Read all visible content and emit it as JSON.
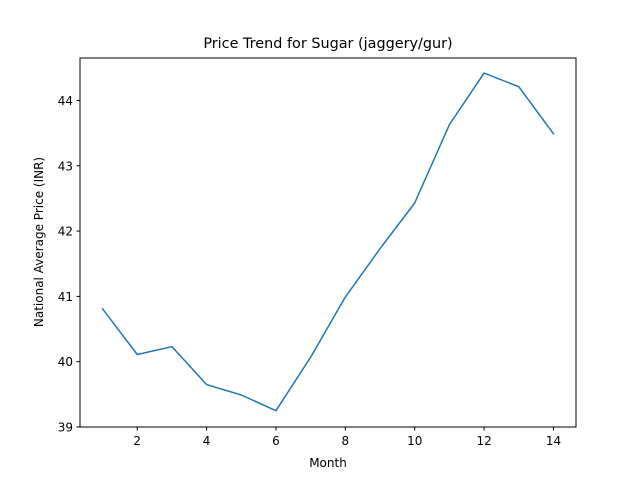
{
  "chart_data": {
    "type": "line",
    "title": "Price Trend for Sugar (jaggery/gur)",
    "xlabel": "Month",
    "ylabel": "National Average Price (INR)",
    "xlim": [
      0.35,
      14.65
    ],
    "ylim": [
      39.0,
      44.65
    ],
    "xticks": [
      2,
      4,
      6,
      8,
      10,
      12,
      14
    ],
    "yticks": [
      39,
      40,
      41,
      42,
      43,
      44
    ],
    "grid": false,
    "line_color": "#1f77b4",
    "series": [
      {
        "x": [
          1,
          2,
          3,
          4,
          5,
          6,
          7,
          8,
          9,
          10,
          11,
          12,
          13,
          14
        ],
        "y": [
          40.81,
          40.11,
          40.23,
          39.65,
          39.49,
          39.25,
          40.07,
          40.99,
          41.73,
          42.43,
          43.63,
          44.42,
          44.21,
          43.49
        ]
      }
    ]
  }
}
